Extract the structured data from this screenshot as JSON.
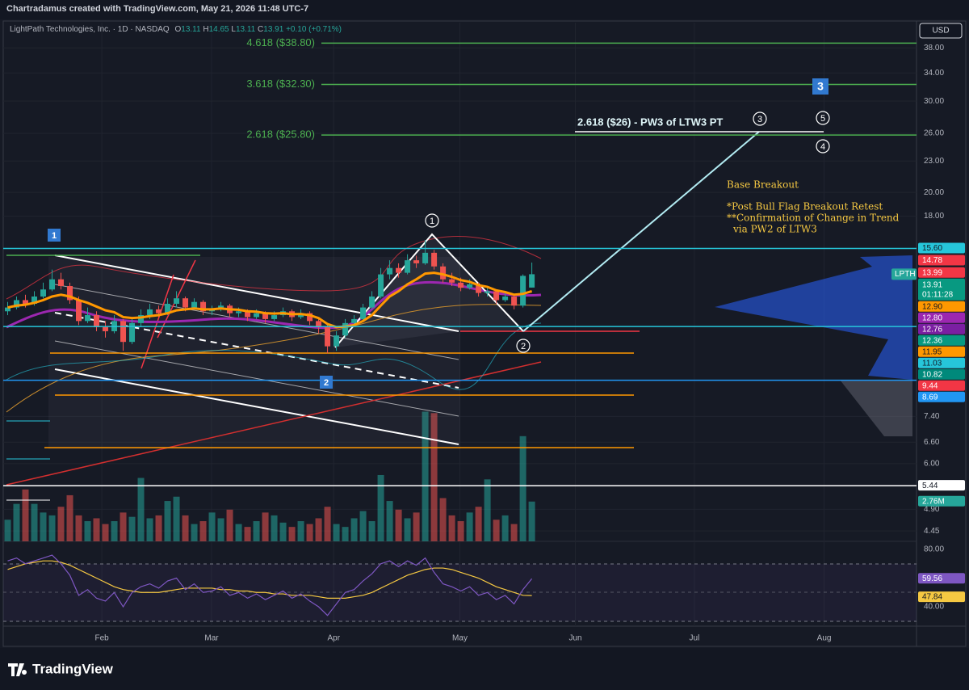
{
  "header": {
    "credit": "Chartradamus created with TradingView.com, May 21, 2026 11:48 UTC-7"
  },
  "footer": {
    "brand": "TradingView"
  },
  "chart_data": {
    "type": "candlestick",
    "title": "LightPath Technologies, Inc. · 1D · NASDAQ",
    "ohlc_prefixes": [
      "O",
      "H",
      "L",
      "C"
    ],
    "change_label": "+0.10 (+0.71%)",
    "currency": "USD",
    "symbol": "LPTH",
    "countdown": "01:11:28",
    "grid": true,
    "log_scale": true,
    "up_color": "#26a69a",
    "down_color": "#ef5350",
    "xlim": [
      -0.5,
      102.3
    ],
    "xticks": [
      {
        "value": 10.6,
        "label": "Feb"
      },
      {
        "value": 22.95,
        "label": "Mar"
      },
      {
        "value": 36.7,
        "label": "Apr"
      },
      {
        "value": 50.9,
        "label": "May"
      },
      {
        "value": 63.9,
        "label": "Jun"
      },
      {
        "value": 77.3,
        "label": "Jul"
      },
      {
        "value": 91.9,
        "label": "Aug"
      }
    ],
    "ylim": [
      4.25,
      42.5
    ],
    "yticks": [
      {
        "value": 38,
        "label": "38.00"
      },
      {
        "value": 34,
        "label": "34.00"
      },
      {
        "value": 30,
        "label": "30.00"
      },
      {
        "value": 26,
        "label": "26.00"
      },
      {
        "value": 23,
        "label": "23.00"
      },
      {
        "value": 20,
        "label": "20.00"
      },
      {
        "value": 18,
        "label": "18.00"
      },
      {
        "value": 7.4,
        "label": "7.40"
      },
      {
        "value": 6.6,
        "label": "6.60"
      },
      {
        "value": 6,
        "label": "6.00"
      },
      {
        "value": 4.9,
        "label": "4.90"
      },
      {
        "value": 4.45,
        "label": "4.45"
      }
    ],
    "open": [
      11.8,
      12.0,
      12.4,
      12.2,
      12.6,
      13.0,
      13.6,
      13.2,
      12.4,
      11.3,
      11.6,
      11.0,
      10.8,
      11.3,
      10.3,
      11.2,
      11.6,
      11.9,
      11.7,
      12.2,
      12.5,
      12.0,
      12.3,
      11.8,
      11.9,
      12.1,
      11.7,
      11.8,
      11.5,
      11.7,
      11.4,
      11.6,
      11.8,
      11.5,
      11.7,
      11.3,
      11.0,
      10.1,
      10.6,
      11.2,
      11.4,
      12.0,
      12.6,
      13.9,
      14.3,
      14.0,
      14.8,
      14.6,
      15.3,
      14.4,
      13.6,
      13.4,
      13.1,
      13.3,
      12.8,
      12.9,
      12.4,
      12.6,
      12.1,
      13.11
    ],
    "high": [
      12.3,
      12.6,
      12.7,
      12.9,
      13.4,
      14.2,
      14.0,
      13.4,
      12.6,
      12.0,
      11.8,
      11.3,
      11.6,
      11.4,
      11.4,
      11.9,
      12.2,
      12.1,
      12.5,
      12.9,
      12.6,
      12.5,
      12.4,
      12.1,
      12.3,
      12.2,
      12.0,
      11.9,
      11.9,
      11.8,
      11.8,
      12.0,
      11.9,
      11.9,
      11.8,
      11.4,
      11.1,
      10.8,
      11.4,
      11.6,
      12.2,
      12.9,
      14.3,
      14.8,
      14.6,
      15.2,
      15.1,
      16.2,
      15.5,
      14.6,
      14.0,
      13.7,
      13.6,
      13.4,
      13.2,
      13.0,
      12.9,
      12.7,
      13.9,
      14.65
    ],
    "low": [
      11.6,
      11.9,
      12.0,
      12.1,
      12.5,
      12.9,
      13.0,
      12.2,
      11.1,
      11.2,
      10.8,
      10.5,
      10.7,
      9.9,
      10.2,
      11.0,
      11.4,
      11.5,
      11.6,
      12.0,
      11.8,
      11.9,
      11.6,
      11.6,
      11.8,
      11.5,
      11.5,
      11.3,
      11.4,
      11.2,
      11.3,
      11.5,
      11.3,
      11.4,
      11.1,
      10.7,
      9.8,
      9.9,
      10.5,
      11.0,
      11.3,
      11.9,
      12.5,
      13.6,
      13.7,
      13.9,
      14.3,
      14.5,
      14.2,
      13.4,
      13.2,
      12.9,
      13.0,
      12.6,
      12.6,
      12.2,
      12.3,
      11.9,
      12.0,
      13.11
    ],
    "close": [
      12.0,
      12.4,
      12.2,
      12.6,
      13.0,
      13.6,
      13.2,
      12.4,
      11.3,
      11.6,
      11.0,
      10.8,
      11.3,
      10.3,
      11.2,
      11.6,
      11.9,
      11.7,
      12.2,
      12.5,
      12.0,
      12.3,
      11.8,
      11.9,
      12.1,
      11.7,
      11.8,
      11.5,
      11.7,
      11.4,
      11.6,
      11.8,
      11.5,
      11.7,
      11.3,
      11.0,
      10.1,
      10.6,
      11.2,
      11.4,
      12.0,
      12.6,
      13.9,
      14.3,
      14.0,
      14.8,
      14.6,
      15.3,
      14.4,
      13.6,
      13.4,
      13.1,
      13.3,
      12.8,
      12.9,
      12.4,
      12.6,
      12.1,
      13.81,
      13.91
    ],
    "ema": {
      "color": "#ff9800",
      "values": [
        12.0,
        12.1,
        12.15,
        12.25,
        12.4,
        12.6,
        12.7,
        12.6,
        12.4,
        12.25,
        12.05,
        11.85,
        11.75,
        11.5,
        11.45,
        11.48,
        11.55,
        11.6,
        11.7,
        11.85,
        11.9,
        11.95,
        11.9,
        11.9,
        11.95,
        11.9,
        11.88,
        11.8,
        11.78,
        11.7,
        11.68,
        11.7,
        11.65,
        11.66,
        11.6,
        11.45,
        11.15,
        11.0,
        11.03,
        11.1,
        11.3,
        11.6,
        12.1,
        12.6,
        12.9,
        13.3,
        13.6,
        13.95,
        14.0,
        13.9,
        13.75,
        13.55,
        13.45,
        13.25,
        13.15,
        12.95,
        12.85,
        12.7,
        12.75,
        12.9
      ]
    },
    "volume": {
      "ylim": [
        0,
        36
      ],
      "last_label": "2.76M",
      "values": [
        1.5,
        2.6,
        3.6,
        2.6,
        2.0,
        1.8,
        2.4,
        3.2,
        1.8,
        1.4,
        1.6,
        1.2,
        1.4,
        2.0,
        1.7,
        4.4,
        1.6,
        1.8,
        2.8,
        3.1,
        1.8,
        1.2,
        1.4,
        2.0,
        1.6,
        2.2,
        1.2,
        1.0,
        1.4,
        2.0,
        1.8,
        1.3,
        1.0,
        1.4,
        1.2,
        1.6,
        2.4,
        1.2,
        1.0,
        1.6,
        2.1,
        1.4,
        4.6,
        2.8,
        2.2,
        1.6,
        2.0,
        9.0,
        8.9,
        3.0,
        1.8,
        1.4,
        2.0,
        2.4,
        4.3,
        1.5,
        1.8,
        1.2,
        7.3,
        2.76
      ]
    },
    "rsi": {
      "color": "#7e57c2",
      "ma_color": "#f5c842",
      "ylim": [
        26.5,
        84.5
      ],
      "yticks": [
        {
          "value": 80,
          "label": "80.00"
        },
        {
          "value": 40,
          "label": "40.00"
        }
      ],
      "values": [
        72,
        74,
        70,
        72,
        74,
        76,
        70,
        62,
        48,
        52,
        46,
        44,
        50,
        40,
        50,
        54,
        56,
        53,
        58,
        60,
        52,
        56,
        50,
        51,
        54,
        48,
        50,
        46,
        49,
        45,
        48,
        51,
        46,
        49,
        44,
        40,
        34,
        42,
        50,
        52,
        58,
        63,
        70,
        72,
        68,
        72,
        69,
        74,
        64,
        56,
        54,
        51,
        54,
        48,
        50,
        45,
        48,
        42,
        52,
        59.56
      ],
      "ma_values": [
        66,
        68,
        70,
        71,
        72,
        72,
        71,
        69,
        66,
        63,
        60,
        57,
        54,
        52,
        51,
        50,
        50,
        50,
        51,
        52,
        53,
        53,
        53,
        53,
        52,
        52,
        51,
        51,
        50,
        50,
        49,
        49,
        48,
        48,
        48,
        47,
        46,
        46,
        46,
        47,
        48,
        50,
        53,
        56,
        59,
        62,
        64,
        66,
        67,
        67,
        66,
        64,
        62,
        60,
        57,
        54,
        52,
        50,
        48,
        47.84
      ]
    },
    "price_tags": [
      {
        "value": 15.6,
        "label": "15.60",
        "color": "#26c6da",
        "line": true
      },
      {
        "value": 14.78,
        "label": "14.78",
        "color": "#f23645"
      },
      {
        "value": 13.99,
        "label": "13.99",
        "color": "#f23645"
      },
      {
        "value": 12.9,
        "label": "12.90",
        "color": "#ff9800"
      },
      {
        "value": 12.8,
        "label": "12.80",
        "color": "#9c27b0"
      },
      {
        "value": 12.76,
        "label": "12.76",
        "color": "#7b1fa2"
      },
      {
        "value": 12.36,
        "label": "12.36",
        "color": "#089981"
      },
      {
        "value": 11.95,
        "label": "11.95",
        "color": "#ff9800"
      },
      {
        "value": 11.03,
        "label": "11.03",
        "color": "#26c6da",
        "line": true
      },
      {
        "value": 10.82,
        "label": "10.82",
        "color": "#00897b"
      },
      {
        "value": 9.44,
        "label": "9.44",
        "color": "#f23645"
      },
      {
        "value": 8.69,
        "label": "8.69",
        "color": "#2196f3",
        "line": true
      },
      {
        "value": 5.44,
        "label": "5.44",
        "color": "#ffffff",
        "line": true
      }
    ],
    "levels": [
      {
        "value": 38.8,
        "label": "4.618 ($38.80)",
        "color": "#4caf50"
      },
      {
        "value": 32.3,
        "label": "3.618 ($32.30)",
        "color": "#4caf50"
      },
      {
        "value": 25.8,
        "label": "2.618 ($25.80)",
        "color": "#4caf50"
      }
    ],
    "annotations": {
      "target": "2.618 ($26) - PW3 of LTW3 PT",
      "notes": [
        "Base Breakout",
        "*Post Bull Flag Breakout Retest",
        "**Confirmation of Change in Trend",
        "via PW2 of LTW3"
      ],
      "waves": [
        "1",
        "2",
        "3",
        "4",
        "5"
      ],
      "degrees": [
        "1",
        "2",
        "3"
      ]
    }
  }
}
